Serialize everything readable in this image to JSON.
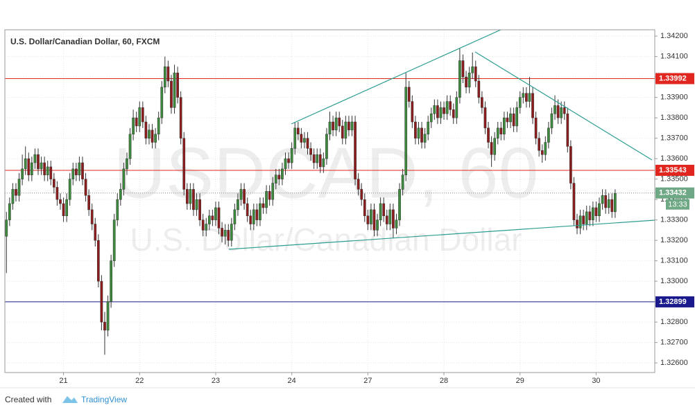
{
  "chart_data": {
    "type": "candlestick",
    "title": "U.S. Dollar/Canadian Dollar, 60, FXCM",
    "watermark": "USDCAD, 60",
    "watermark_subtitle": "U.S. Dollar/Canadian Dollar",
    "up_color": "#3d8b3d",
    "down_color": "#8e1c1c",
    "ylim": [
      1.32553,
      1.34231
    ],
    "yticks": [
      {
        "value": 1.342,
        "label": "1.34200"
      },
      {
        "value": 1.341,
        "label": "1.34100"
      },
      {
        "value": 1.34,
        "label": "1.34000"
      },
      {
        "value": 1.339,
        "label": "1.33900"
      },
      {
        "value": 1.338,
        "label": "1.33800"
      },
      {
        "value": 1.337,
        "label": "1.33700"
      },
      {
        "value": 1.336,
        "label": "1.33600"
      },
      {
        "value": 1.335,
        "label": "1.33500"
      },
      {
        "value": 1.334,
        "label": "1.33400"
      },
      {
        "value": 1.333,
        "label": "1.33300"
      },
      {
        "value": 1.332,
        "label": "1.33200"
      },
      {
        "value": 1.331,
        "label": "1.33100"
      },
      {
        "value": 1.33,
        "label": "1.33000"
      },
      {
        "value": 1.329,
        "label": "1.32900"
      },
      {
        "value": 1.328,
        "label": "1.32800"
      },
      {
        "value": 1.327,
        "label": "1.32700"
      },
      {
        "value": 1.326,
        "label": "1.32600"
      }
    ],
    "xlim": [
      -0.5,
      204.5
    ],
    "xticks": [
      {
        "value": 18,
        "label": "21"
      },
      {
        "value": 42,
        "label": "22"
      },
      {
        "value": 66,
        "label": "23"
      },
      {
        "value": 90,
        "label": "24"
      },
      {
        "value": 114,
        "label": "27"
      },
      {
        "value": 138,
        "label": "28"
      },
      {
        "value": 162,
        "label": "29"
      },
      {
        "value": 186,
        "label": "30"
      }
    ],
    "grid": true,
    "hlines": [
      {
        "value": 1.33992,
        "label": "1.33992",
        "color": "#e0261f"
      },
      {
        "value": 1.33543,
        "label": "1.33543",
        "color": "#e0261f"
      },
      {
        "value": 1.32899,
        "label": "1.32899",
        "color": "#1a1a8c"
      }
    ],
    "last_price": {
      "value": 1.33432,
      "label": "1.33432",
      "color": "#6fa884",
      "countdown": "13:33"
    },
    "ohlc": [
      [
        1.3322,
        1.3334,
        1.3304,
        1.333
      ],
      [
        1.333,
        1.3341,
        1.3327,
        1.3338
      ],
      [
        1.3338,
        1.3348,
        1.3335,
        1.3345
      ],
      [
        1.3345,
        1.3348,
        1.3339,
        1.3342
      ],
      [
        1.3342,
        1.3353,
        1.3339,
        1.335
      ],
      [
        1.335,
        1.3362,
        1.3347,
        1.3355
      ],
      [
        1.3355,
        1.3366,
        1.3352,
        1.336
      ],
      [
        1.336,
        1.3363,
        1.3349,
        1.3352
      ],
      [
        1.3352,
        1.3361,
        1.3349,
        1.3358
      ],
      [
        1.3358,
        1.3365,
        1.3355,
        1.3362
      ],
      [
        1.3362,
        1.3365,
        1.3352,
        1.3355
      ],
      [
        1.3355,
        1.3361,
        1.3352,
        1.3358
      ],
      [
        1.3358,
        1.3361,
        1.3349,
        1.3352
      ],
      [
        1.3352,
        1.3359,
        1.3349,
        1.3356
      ],
      [
        1.3356,
        1.3359,
        1.3347,
        1.335
      ],
      [
        1.335,
        1.3353,
        1.3343,
        1.3346
      ],
      [
        1.3346,
        1.3349,
        1.3337,
        1.334
      ],
      [
        1.334,
        1.3343,
        1.3335,
        1.3338
      ],
      [
        1.3338,
        1.3341,
        1.3329,
        1.3332
      ],
      [
        1.3332,
        1.3343,
        1.3329,
        1.334
      ],
      [
        1.334,
        1.3353,
        1.3337,
        1.335
      ],
      [
        1.335,
        1.3358,
        1.3347,
        1.3355
      ],
      [
        1.3355,
        1.3358,
        1.3349,
        1.3352
      ],
      [
        1.3352,
        1.3361,
        1.3349,
        1.3358
      ],
      [
        1.3358,
        1.3361,
        1.3347,
        1.335
      ],
      [
        1.335,
        1.3353,
        1.3339,
        1.3342
      ],
      [
        1.3342,
        1.3345,
        1.3332,
        1.3335
      ],
      [
        1.3335,
        1.3338,
        1.3325,
        1.3328
      ],
      [
        1.3328,
        1.3331,
        1.3317,
        1.332
      ],
      [
        1.332,
        1.3323,
        1.3297,
        1.33
      ],
      [
        1.33,
        1.3303,
        1.3276,
        1.328
      ],
      [
        1.328,
        1.3285,
        1.3264,
        1.3276
      ],
      [
        1.3276,
        1.3293,
        1.3273,
        1.329
      ],
      [
        1.329,
        1.3313,
        1.3287,
        1.331
      ],
      [
        1.331,
        1.3333,
        1.3307,
        1.333
      ],
      [
        1.333,
        1.3343,
        1.3327,
        1.334
      ],
      [
        1.334,
        1.3348,
        1.3337,
        1.3345
      ],
      [
        1.3345,
        1.3358,
        1.3342,
        1.3355
      ],
      [
        1.3355,
        1.3363,
        1.3352,
        1.336
      ],
      [
        1.336,
        1.3375,
        1.3357,
        1.3372
      ],
      [
        1.3372,
        1.3384,
        1.3369,
        1.338
      ],
      [
        1.338,
        1.3383,
        1.3373,
        1.3376
      ],
      [
        1.3376,
        1.3388,
        1.3373,
        1.3385
      ],
      [
        1.3385,
        1.3388,
        1.3375,
        1.3378
      ],
      [
        1.3378,
        1.3381,
        1.3367,
        1.337
      ],
      [
        1.337,
        1.3377,
        1.3367,
        1.3374
      ],
      [
        1.3374,
        1.3377,
        1.3365,
        1.3368
      ],
      [
        1.3368,
        1.3375,
        1.3365,
        1.3372
      ],
      [
        1.3372,
        1.3383,
        1.3369,
        1.338
      ],
      [
        1.338,
        1.3398,
        1.3377,
        1.3395
      ],
      [
        1.3395,
        1.341,
        1.3392,
        1.3405
      ],
      [
        1.3405,
        1.3408,
        1.3395,
        1.3398
      ],
      [
        1.3398,
        1.3401,
        1.3382,
        1.3385
      ],
      [
        1.3385,
        1.3406,
        1.3382,
        1.3402
      ],
      [
        1.3402,
        1.3405,
        1.3387,
        1.339
      ],
      [
        1.339,
        1.3393,
        1.3367,
        1.337
      ],
      [
        1.337,
        1.3373,
        1.3342,
        1.3345
      ],
      [
        1.3345,
        1.3348,
        1.3335,
        1.3338
      ],
      [
        1.3338,
        1.3348,
        1.3335,
        1.3345
      ],
      [
        1.3345,
        1.3348,
        1.3332,
        1.3335
      ],
      [
        1.3335,
        1.3343,
        1.3332,
        1.334
      ],
      [
        1.334,
        1.3343,
        1.3327,
        1.333
      ],
      [
        1.333,
        1.3333,
        1.3322,
        1.3325
      ],
      [
        1.3325,
        1.3331,
        1.3322,
        1.3328
      ],
      [
        1.3328,
        1.3335,
        1.3325,
        1.3332
      ],
      [
        1.3332,
        1.3335,
        1.3327,
        1.333
      ],
      [
        1.333,
        1.3339,
        1.3327,
        1.3336
      ],
      [
        1.3336,
        1.3339,
        1.3323,
        1.3326
      ],
      [
        1.3326,
        1.3329,
        1.3319,
        1.3322
      ],
      [
        1.3322,
        1.3328,
        1.3318,
        1.3325
      ],
      [
        1.3325,
        1.3328,
        1.3317,
        1.332
      ],
      [
        1.332,
        1.3331,
        1.3317,
        1.3328
      ],
      [
        1.3328,
        1.3338,
        1.3325,
        1.3335
      ],
      [
        1.3335,
        1.3343,
        1.3332,
        1.334
      ],
      [
        1.334,
        1.3348,
        1.3337,
        1.3345
      ],
      [
        1.3345,
        1.3348,
        1.3335,
        1.3338
      ],
      [
        1.3338,
        1.3341,
        1.3329,
        1.3332
      ],
      [
        1.3332,
        1.3335,
        1.3325,
        1.3328
      ],
      [
        1.3328,
        1.3338,
        1.3325,
        1.3335
      ],
      [
        1.3335,
        1.3338,
        1.3327,
        1.333
      ],
      [
        1.333,
        1.3341,
        1.3327,
        1.3338
      ],
      [
        1.3338,
        1.3341,
        1.3333,
        1.3336
      ],
      [
        1.3336,
        1.3347,
        1.3333,
        1.3344
      ],
      [
        1.3344,
        1.3347,
        1.3337,
        1.334
      ],
      [
        1.334,
        1.3351,
        1.3337,
        1.3348
      ],
      [
        1.3348,
        1.3355,
        1.3345,
        1.3352
      ],
      [
        1.3352,
        1.3355,
        1.3347,
        1.335
      ],
      [
        1.335,
        1.3358,
        1.3347,
        1.3355
      ],
      [
        1.3355,
        1.3363,
        1.3352,
        1.336
      ],
      [
        1.336,
        1.3363,
        1.3355,
        1.3358
      ],
      [
        1.3358,
        1.3368,
        1.3355,
        1.3365
      ],
      [
        1.3365,
        1.3378,
        1.3362,
        1.3375
      ],
      [
        1.3375,
        1.3378,
        1.3369,
        1.3372
      ],
      [
        1.3372,
        1.3375,
        1.3365,
        1.3368
      ],
      [
        1.3368,
        1.3373,
        1.3365,
        1.337
      ],
      [
        1.337,
        1.3373,
        1.3362,
        1.3365
      ],
      [
        1.3365,
        1.3368,
        1.3359,
        1.3362
      ],
      [
        1.3362,
        1.3365,
        1.3355,
        1.3358
      ],
      [
        1.3358,
        1.3365,
        1.3355,
        1.3362
      ],
      [
        1.3362,
        1.3365,
        1.3353,
        1.3356
      ],
      [
        1.3356,
        1.3363,
        1.3353,
        1.336
      ],
      [
        1.336,
        1.3375,
        1.3357,
        1.3372
      ],
      [
        1.3372,
        1.3383,
        1.3369,
        1.3378
      ],
      [
        1.3378,
        1.3381,
        1.3371,
        1.3374
      ],
      [
        1.3374,
        1.3383,
        1.3371,
        1.338
      ],
      [
        1.338,
        1.3383,
        1.3373,
        1.3376
      ],
      [
        1.3376,
        1.3379,
        1.3367,
        1.337
      ],
      [
        1.337,
        1.3381,
        1.3367,
        1.3378
      ],
      [
        1.3378,
        1.3381,
        1.3371,
        1.3374
      ],
      [
        1.3374,
        1.3381,
        1.3371,
        1.3378
      ],
      [
        1.3378,
        1.3381,
        1.3347,
        1.335
      ],
      [
        1.335,
        1.3353,
        1.3342,
        1.3345
      ],
      [
        1.3345,
        1.3348,
        1.3337,
        1.334
      ],
      [
        1.334,
        1.3343,
        1.3329,
        1.3332
      ],
      [
        1.3332,
        1.3335,
        1.3325,
        1.3328
      ],
      [
        1.3328,
        1.3338,
        1.3325,
        1.3335
      ],
      [
        1.3335,
        1.3338,
        1.3322,
        1.3325
      ],
      [
        1.3325,
        1.3333,
        1.3322,
        1.333
      ],
      [
        1.333,
        1.3341,
        1.3327,
        1.3338
      ],
      [
        1.3338,
        1.3341,
        1.3329,
        1.3332
      ],
      [
        1.3332,
        1.3335,
        1.3325,
        1.3328
      ],
      [
        1.3328,
        1.3338,
        1.3325,
        1.3335
      ],
      [
        1.3335,
        1.3338,
        1.3321,
        1.3326
      ],
      [
        1.3326,
        1.3333,
        1.3323,
        1.333
      ],
      [
        1.333,
        1.3348,
        1.3327,
        1.3345
      ],
      [
        1.3345,
        1.3355,
        1.3342,
        1.3352
      ],
      [
        1.3352,
        1.3402,
        1.3349,
        1.3395
      ],
      [
        1.3395,
        1.3398,
        1.3385,
        1.3388
      ],
      [
        1.3388,
        1.3391,
        1.3375,
        1.3378
      ],
      [
        1.3378,
        1.3381,
        1.3367,
        1.337
      ],
      [
        1.337,
        1.3378,
        1.3367,
        1.3375
      ],
      [
        1.3375,
        1.3378,
        1.3365,
        1.3368
      ],
      [
        1.3368,
        1.3375,
        1.3365,
        1.3372
      ],
      [
        1.3372,
        1.3381,
        1.3369,
        1.3378
      ],
      [
        1.3378,
        1.3385,
        1.3375,
        1.3382
      ],
      [
        1.3382,
        1.3389,
        1.3379,
        1.3386
      ],
      [
        1.3386,
        1.3389,
        1.3377,
        1.338
      ],
      [
        1.338,
        1.3388,
        1.3377,
        1.3385
      ],
      [
        1.3385,
        1.3388,
        1.3379,
        1.3382
      ],
      [
        1.3382,
        1.3391,
        1.3379,
        1.3388
      ],
      [
        1.3388,
        1.3391,
        1.3381,
        1.3384
      ],
      [
        1.3384,
        1.3387,
        1.3377,
        1.338
      ],
      [
        1.338,
        1.3393,
        1.3377,
        1.339
      ],
      [
        1.339,
        1.3414,
        1.3387,
        1.3408
      ],
      [
        1.3408,
        1.3411,
        1.3397,
        1.34
      ],
      [
        1.34,
        1.3403,
        1.3392,
        1.3395
      ],
      [
        1.3395,
        1.3405,
        1.3392,
        1.3402
      ],
      [
        1.3402,
        1.3412,
        1.3399,
        1.3405
      ],
      [
        1.3405,
        1.3408,
        1.3395,
        1.3398
      ],
      [
        1.3398,
        1.3401,
        1.3387,
        1.339
      ],
      [
        1.339,
        1.3393,
        1.3382,
        1.3385
      ],
      [
        1.3385,
        1.3388,
        1.3372,
        1.3375
      ],
      [
        1.3375,
        1.3378,
        1.3365,
        1.3368
      ],
      [
        1.3368,
        1.3371,
        1.3356,
        1.3362
      ],
      [
        1.3362,
        1.3373,
        1.3359,
        1.337
      ],
      [
        1.337,
        1.3378,
        1.3367,
        1.3375
      ],
      [
        1.3375,
        1.3378,
        1.3369,
        1.3372
      ],
      [
        1.3372,
        1.3383,
        1.3369,
        1.338
      ],
      [
        1.338,
        1.3383,
        1.3375,
        1.3378
      ],
      [
        1.3378,
        1.3385,
        1.3375,
        1.3382
      ],
      [
        1.3382,
        1.3385,
        1.3373,
        1.3376
      ],
      [
        1.3376,
        1.3388,
        1.3373,
        1.3385
      ],
      [
        1.3385,
        1.3393,
        1.3382,
        1.339
      ],
      [
        1.339,
        1.3395,
        1.3387,
        1.3392
      ],
      [
        1.3392,
        1.3395,
        1.3385,
        1.3388
      ],
      [
        1.3388,
        1.34,
        1.3385,
        1.3392
      ],
      [
        1.3392,
        1.3395,
        1.3377,
        1.338
      ],
      [
        1.338,
        1.3383,
        1.3367,
        1.337
      ],
      [
        1.337,
        1.3373,
        1.3361,
        1.3364
      ],
      [
        1.3364,
        1.3367,
        1.3358,
        1.3362
      ],
      [
        1.3362,
        1.3371,
        1.3359,
        1.3368
      ],
      [
        1.3368,
        1.3378,
        1.3365,
        1.3375
      ],
      [
        1.3375,
        1.3385,
        1.3372,
        1.3382
      ],
      [
        1.3382,
        1.3391,
        1.3379,
        1.3386
      ],
      [
        1.3386,
        1.3389,
        1.3377,
        1.338
      ],
      [
        1.338,
        1.3388,
        1.3377,
        1.3385
      ],
      [
        1.3385,
        1.3388,
        1.3379,
        1.3382
      ],
      [
        1.3382,
        1.3385,
        1.3363,
        1.3366
      ],
      [
        1.3366,
        1.3369,
        1.3345,
        1.3348
      ],
      [
        1.3348,
        1.3351,
        1.3327,
        1.333
      ],
      [
        1.333,
        1.3333,
        1.3323,
        1.3326
      ],
      [
        1.3326,
        1.3335,
        1.3323,
        1.3332
      ],
      [
        1.3332,
        1.3335,
        1.3325,
        1.3328
      ],
      [
        1.3328,
        1.3337,
        1.3325,
        1.3334
      ],
      [
        1.3334,
        1.3337,
        1.3327,
        1.333
      ],
      [
        1.333,
        1.3339,
        1.3327,
        1.3336
      ],
      [
        1.3336,
        1.3339,
        1.3329,
        1.3332
      ],
      [
        1.3332,
        1.3341,
        1.3329,
        1.3338
      ],
      [
        1.3338,
        1.3345,
        1.3335,
        1.3342
      ],
      [
        1.3342,
        1.3345,
        1.3333,
        1.3336
      ],
      [
        1.3336,
        1.3343,
        1.3333,
        1.334
      ],
      [
        1.334,
        1.3343,
        1.3331,
        1.3334
      ],
      [
        1.3334,
        1.3345,
        1.3331,
        1.3343
      ]
    ]
  },
  "footer": {
    "created_with": "Created with",
    "brand": "TradingView"
  }
}
